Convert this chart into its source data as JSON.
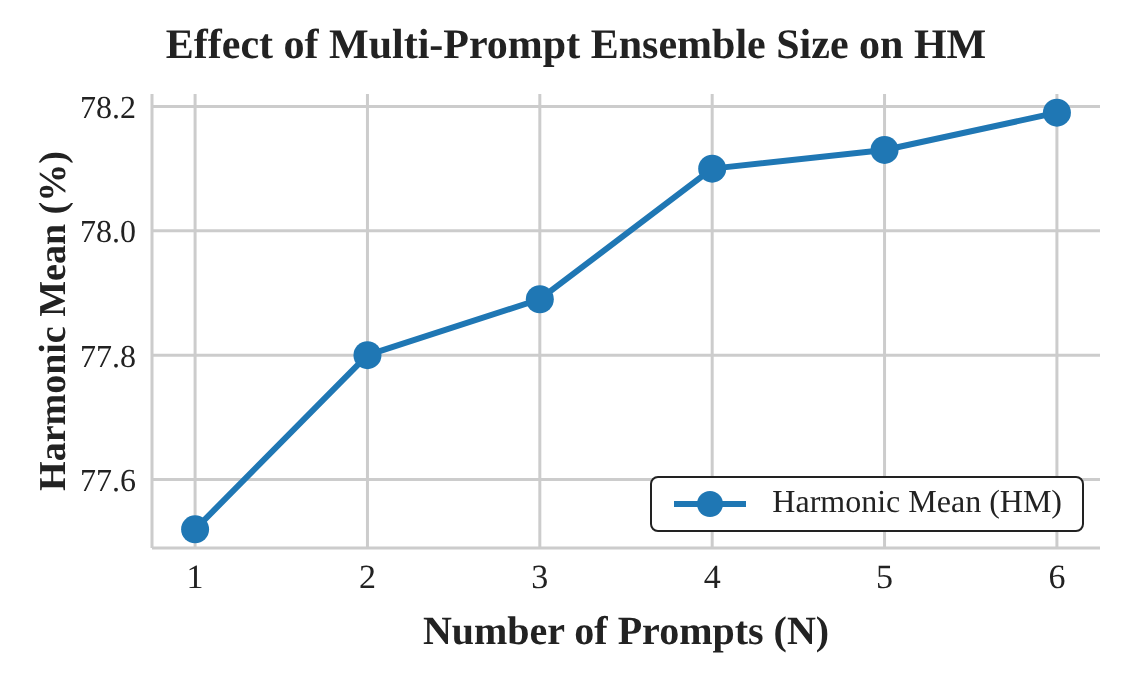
{
  "chart_data": {
    "type": "line",
    "title": "Effect of Multi-Prompt Ensemble Size on HM",
    "xlabel": "Number of Prompts (N)",
    "ylabel": "Harmonic Mean (%)",
    "x": [
      1,
      2,
      3,
      4,
      5,
      6
    ],
    "series": [
      {
        "name": "Harmonic Mean (HM)",
        "color": "#1f77b4",
        "values": [
          77.52,
          77.8,
          77.89,
          78.1,
          78.13,
          78.19
        ]
      }
    ],
    "xlim": [
      0.75,
      6.25
    ],
    "xticks": [
      1,
      2,
      3,
      4,
      5,
      6
    ],
    "ylim": [
      77.49,
      78.22
    ],
    "yticks": [
      77.6,
      77.8,
      {
        "value": 78,
        "label": "78.0"
      },
      78.2
    ],
    "grid": true,
    "legend": "bottom right",
    "marker": "circle",
    "line_style": "solid"
  }
}
